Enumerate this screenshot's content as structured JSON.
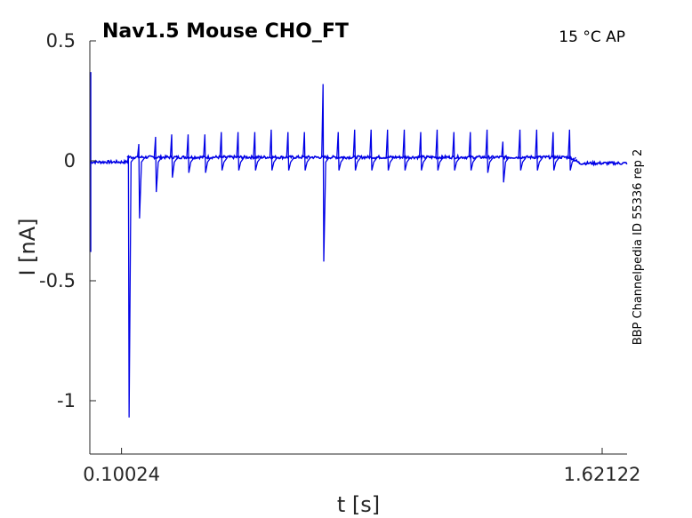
{
  "chart_data": {
    "type": "line",
    "title": "Nav1.5  Mouse  CHO_FT",
    "condition_label": "15 °C  AP",
    "side_label": "BBP Channelpedia ID 55336 rep 2",
    "xlabel": "t [s]",
    "ylabel": "I [nA]",
    "x_tick_labels": [
      "0.10024",
      "1.62122"
    ],
    "x_ticks": [
      0.10024,
      1.62122
    ],
    "y_tick_labels": [
      "0.5",
      "0",
      "-0.5",
      "-1"
    ],
    "y_ticks": [
      0.5,
      0,
      -0.5,
      -1
    ],
    "xlim": [
      0.0,
      1.7
    ],
    "ylim": [
      -1.2,
      0.5
    ],
    "grid": false,
    "series_color": "#0000e6",
    "baseline_pre": -0.005,
    "baseline_during": 0.015,
    "baseline_post": -0.01,
    "stim_start": 0.12,
    "stim_end": 1.52,
    "spikes": [
      {
        "t": 0.122,
        "low": -1.07,
        "high": 0.02
      },
      {
        "t": 0.155,
        "low": -0.24,
        "high": 0.07
      },
      {
        "t": 0.208,
        "low": -0.13,
        "high": 0.1
      },
      {
        "t": 0.259,
        "low": -0.07,
        "high": 0.11
      },
      {
        "t": 0.311,
        "low": -0.05,
        "high": 0.11
      },
      {
        "t": 0.364,
        "low": -0.05,
        "high": 0.11
      },
      {
        "t": 0.416,
        "low": -0.04,
        "high": 0.12
      },
      {
        "t": 0.469,
        "low": -0.04,
        "high": 0.12
      },
      {
        "t": 0.522,
        "low": -0.04,
        "high": 0.12
      },
      {
        "t": 0.574,
        "low": -0.04,
        "high": 0.13
      },
      {
        "t": 0.627,
        "low": -0.04,
        "high": 0.12
      },
      {
        "t": 0.679,
        "low": -0.04,
        "high": 0.12
      },
      {
        "t": 0.738,
        "low": -0.42,
        "high": 0.32
      },
      {
        "t": 0.786,
        "low": -0.04,
        "high": 0.12
      },
      {
        "t": 0.838,
        "low": -0.04,
        "high": 0.13
      },
      {
        "t": 0.89,
        "low": -0.04,
        "high": 0.13
      },
      {
        "t": 0.942,
        "low": -0.04,
        "high": 0.13
      },
      {
        "t": 0.995,
        "low": -0.04,
        "high": 0.13
      },
      {
        "t": 1.047,
        "low": -0.04,
        "high": 0.12
      },
      {
        "t": 1.099,
        "low": -0.04,
        "high": 0.13
      },
      {
        "t": 1.152,
        "low": -0.04,
        "high": 0.12
      },
      {
        "t": 1.204,
        "low": -0.04,
        "high": 0.12
      },
      {
        "t": 1.257,
        "low": -0.05,
        "high": 0.13
      },
      {
        "t": 1.307,
        "low": -0.09,
        "high": 0.08
      },
      {
        "t": 1.361,
        "low": -0.04,
        "high": 0.13
      },
      {
        "t": 1.414,
        "low": -0.04,
        "high": 0.13
      },
      {
        "t": 1.466,
        "low": -0.04,
        "high": 0.12
      },
      {
        "t": 1.518,
        "low": -0.04,
        "high": 0.13
      }
    ],
    "start_artifact": {
      "t": 0.0,
      "low": -0.38,
      "high": 0.37
    }
  }
}
